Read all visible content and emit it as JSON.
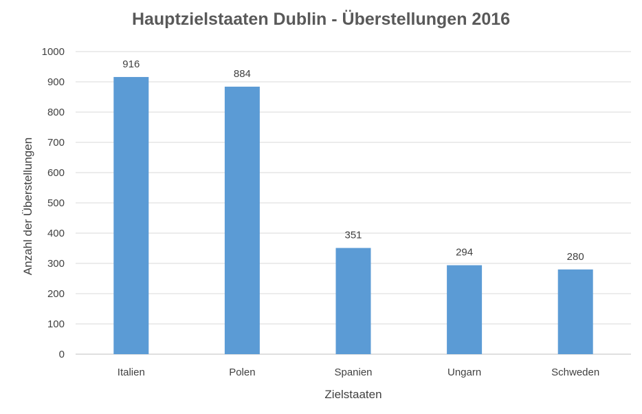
{
  "chart_data": {
    "type": "bar",
    "title": "Hauptzielstaaten Dublin - Überstellungen 2016",
    "xlabel": "Zielstaaten",
    "ylabel": "Anzahl der Überstellungen",
    "categories": [
      "Italien",
      "Polen",
      "Spanien",
      "Ungarn",
      "Schweden"
    ],
    "values": [
      916,
      884,
      351,
      294,
      280
    ],
    "data_labels": [
      "916",
      "884",
      "351",
      "294",
      "280"
    ],
    "ylim": [
      0,
      1000
    ],
    "yticks": [
      0,
      100,
      200,
      300,
      400,
      500,
      600,
      700,
      800,
      900,
      1000
    ],
    "grid": true,
    "legend": "none",
    "colors": {
      "bar": "#5B9BD5",
      "grid": "#D9D9D9",
      "axis_text": "#404040",
      "title": "#595959"
    }
  }
}
